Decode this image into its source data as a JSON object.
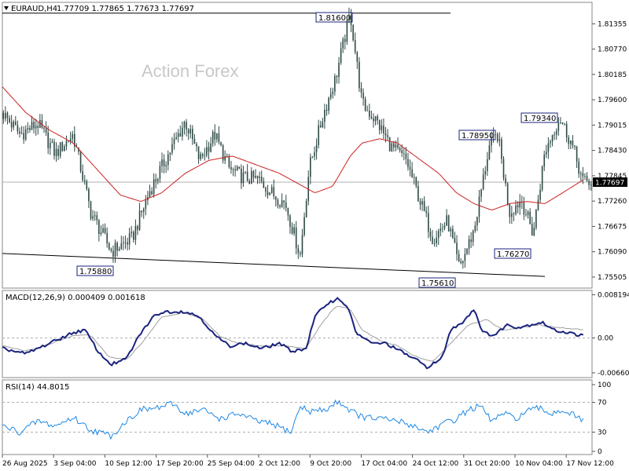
{
  "header": {
    "symbol": "EURAUD,H4",
    "ohlc": "1.77709 1.77865 1.77673 1.77697"
  },
  "watermark": "Action Forex",
  "colors": {
    "candle": "#2e4a46",
    "ma": "#cc2222",
    "macd": "#1a237e",
    "signal": "#a0a0a0",
    "rsi": "#1e88e5",
    "grid": "#b0b0b0"
  },
  "chart_data": [
    {
      "type": "candlestick",
      "panel": "price",
      "ylim": [
        1.7525,
        1.8185
      ],
      "y_ticks": [
        "1.81355",
        "1.80770",
        "1.80185",
        "1.79600",
        "1.79015",
        "1.78430",
        "1.77845",
        "1.77260",
        "1.76675",
        "1.76090",
        "1.75505"
      ],
      "current_price": "1.77697",
      "x_ticks": [
        "26 Aug 2025",
        "3 Sep 04:00",
        "10 Sep 12:00",
        "17 Sep 20:00",
        "25 Sep 04:00",
        "2 Oct 12:00",
        "9 Oct 20:00",
        "17 Oct 04:00",
        "24 Oct 12:00",
        "31 Oct 20:00",
        "10 Nov 04:00",
        "17 Nov 12:00"
      ],
      "annotations": [
        {
          "label": "1.81600",
          "value": 1.816
        },
        {
          "label": "1.75880",
          "value": 1.7588
        },
        {
          "label": "1.75610",
          "value": 1.7561
        },
        {
          "label": "1.78950",
          "value": 1.7895
        },
        {
          "label": "1.79340",
          "value": 1.7934
        },
        {
          "label": "1.76270",
          "value": 1.7627
        }
      ],
      "trendlines": [
        {
          "name": "resistance",
          "from": [
            0.0,
            1.816
          ],
          "to": [
            0.76,
            1.816
          ]
        },
        {
          "name": "support",
          "from": [
            0.0,
            1.7605
          ],
          "to": [
            0.92,
            1.7552
          ]
        }
      ],
      "key_points": [
        [
          0.0,
          1.793
        ],
        [
          0.03,
          1.788
        ],
        [
          0.06,
          1.7905
        ],
        [
          0.09,
          1.7835
        ],
        [
          0.12,
          1.788
        ],
        [
          0.15,
          1.77
        ],
        [
          0.185,
          1.761
        ],
        [
          0.22,
          1.764
        ],
        [
          0.25,
          1.775
        ],
        [
          0.28,
          1.783
        ],
        [
          0.31,
          1.791
        ],
        [
          0.335,
          1.782
        ],
        [
          0.36,
          1.788
        ],
        [
          0.385,
          1.78
        ],
        [
          0.41,
          1.778
        ],
        [
          0.435,
          1.7775
        ],
        [
          0.46,
          1.774
        ],
        [
          0.48,
          1.772
        ],
        [
          0.505,
          1.76
        ],
        [
          0.52,
          1.78
        ],
        [
          0.545,
          1.793
        ],
        [
          0.565,
          1.801
        ],
        [
          0.59,
          1.816
        ],
        [
          0.61,
          1.795
        ],
        [
          0.635,
          1.791
        ],
        [
          0.66,
          1.785
        ],
        [
          0.685,
          1.782
        ],
        [
          0.71,
          1.772
        ],
        [
          0.73,
          1.764
        ],
        [
          0.755,
          1.768
        ],
        [
          0.775,
          1.757
        ],
        [
          0.8,
          1.766
        ],
        [
          0.825,
          1.785
        ],
        [
          0.84,
          1.788
        ],
        [
          0.86,
          1.77
        ],
        [
          0.88,
          1.773
        ],
        [
          0.9,
          1.765
        ],
        [
          0.92,
          1.784
        ],
        [
          0.945,
          1.792
        ],
        [
          0.965,
          1.786
        ],
        [
          0.985,
          1.777
        ]
      ],
      "ma_points": [
        [
          0.0,
          1.799
        ],
        [
          0.04,
          1.793
        ],
        [
          0.08,
          1.789
        ],
        [
          0.12,
          1.786
        ],
        [
          0.16,
          1.78
        ],
        [
          0.2,
          1.774
        ],
        [
          0.235,
          1.7725
        ],
        [
          0.27,
          1.7745
        ],
        [
          0.31,
          1.779
        ],
        [
          0.35,
          1.782
        ],
        [
          0.39,
          1.783
        ],
        [
          0.43,
          1.781
        ],
        [
          0.47,
          1.779
        ],
        [
          0.51,
          1.776
        ],
        [
          0.53,
          1.7745
        ],
        [
          0.56,
          1.776
        ],
        [
          0.59,
          1.783
        ],
        [
          0.61,
          1.786
        ],
        [
          0.64,
          1.787
        ],
        [
          0.67,
          1.786
        ],
        [
          0.7,
          1.783
        ],
        [
          0.74,
          1.779
        ],
        [
          0.77,
          1.7745
        ],
        [
          0.8,
          1.772
        ],
        [
          0.83,
          1.7705
        ],
        [
          0.86,
          1.772
        ],
        [
          0.89,
          1.7725
        ],
        [
          0.92,
          1.772
        ],
        [
          0.95,
          1.7745
        ],
        [
          0.985,
          1.7775
        ]
      ]
    },
    {
      "type": "line",
      "panel": "macd",
      "title": "MACD(12,26,9) 0.000409 0.001618",
      "ylim": [
        -0.0075,
        0.009
      ],
      "y_ticks": [
        "0.008194",
        "0.00",
        "-0.006604"
      ],
      "key_points": [
        [
          0.0,
          -0.002
        ],
        [
          0.04,
          -0.003
        ],
        [
          0.08,
          -0.001
        ],
        [
          0.12,
          0.001
        ],
        [
          0.14,
          0.0015
        ],
        [
          0.165,
          -0.003
        ],
        [
          0.185,
          -0.005
        ],
        [
          0.21,
          -0.004
        ],
        [
          0.235,
          0.001
        ],
        [
          0.26,
          0.0045
        ],
        [
          0.28,
          0.005
        ],
        [
          0.31,
          0.005
        ],
        [
          0.335,
          0.004
        ],
        [
          0.36,
          0.0005
        ],
        [
          0.385,
          -0.0015
        ],
        [
          0.41,
          -0.001
        ],
        [
          0.44,
          -0.002
        ],
        [
          0.47,
          -0.001
        ],
        [
          0.49,
          -0.0025
        ],
        [
          0.515,
          -0.002
        ],
        [
          0.53,
          0.004
        ],
        [
          0.55,
          0.0065
        ],
        [
          0.57,
          0.0075
        ],
        [
          0.585,
          0.006
        ],
        [
          0.6,
          0.001
        ],
        [
          0.625,
          -0.001
        ],
        [
          0.65,
          -0.001
        ],
        [
          0.675,
          -0.0025
        ],
        [
          0.7,
          -0.004
        ],
        [
          0.72,
          -0.0055
        ],
        [
          0.745,
          -0.004
        ],
        [
          0.76,
          0.0015
        ],
        [
          0.78,
          0.003
        ],
        [
          0.8,
          0.0055
        ],
        [
          0.815,
          0.001
        ],
        [
          0.835,
          0.0005
        ],
        [
          0.855,
          0.0025
        ],
        [
          0.875,
          0.002
        ],
        [
          0.895,
          0.0025
        ],
        [
          0.915,
          0.003
        ],
        [
          0.935,
          0.0015
        ],
        [
          0.96,
          0.001
        ],
        [
          0.985,
          0.0004
        ]
      ],
      "signal_points": [
        [
          0.0,
          -0.0015
        ],
        [
          0.04,
          -0.0025
        ],
        [
          0.08,
          -0.0012
        ],
        [
          0.12,
          0.0005
        ],
        [
          0.15,
          0.0005
        ],
        [
          0.18,
          -0.0035
        ],
        [
          0.21,
          -0.0042
        ],
        [
          0.24,
          -0.0005
        ],
        [
          0.27,
          0.004
        ],
        [
          0.31,
          0.0048
        ],
        [
          0.34,
          0.0035
        ],
        [
          0.37,
          0.0002
        ],
        [
          0.4,
          -0.001
        ],
        [
          0.44,
          -0.0015
        ],
        [
          0.48,
          -0.0015
        ],
        [
          0.515,
          -0.002
        ],
        [
          0.54,
          0.0025
        ],
        [
          0.565,
          0.006
        ],
        [
          0.59,
          0.0055
        ],
        [
          0.61,
          0.0015
        ],
        [
          0.64,
          -0.0005
        ],
        [
          0.67,
          -0.0015
        ],
        [
          0.7,
          -0.0035
        ],
        [
          0.73,
          -0.0045
        ],
        [
          0.76,
          -0.001
        ],
        [
          0.79,
          0.0025
        ],
        [
          0.82,
          0.0035
        ],
        [
          0.85,
          0.0015
        ],
        [
          0.88,
          0.002
        ],
        [
          0.91,
          0.0025
        ],
        [
          0.94,
          0.002
        ],
        [
          0.985,
          0.0016
        ]
      ]
    },
    {
      "type": "line",
      "panel": "rsi",
      "title": "RSI(14) 44.8015",
      "ylim": [
        0,
        100
      ],
      "y_ticks": [
        "100",
        "70",
        "30",
        "0"
      ],
      "levels": [
        70,
        30
      ],
      "key_points": [
        [
          0.0,
          38
        ],
        [
          0.03,
          30
        ],
        [
          0.06,
          45
        ],
        [
          0.09,
          38
        ],
        [
          0.12,
          50
        ],
        [
          0.15,
          33
        ],
        [
          0.185,
          25
        ],
        [
          0.21,
          45
        ],
        [
          0.235,
          60
        ],
        [
          0.26,
          62
        ],
        [
          0.29,
          68
        ],
        [
          0.31,
          55
        ],
        [
          0.34,
          60
        ],
        [
          0.37,
          48
        ],
        [
          0.4,
          55
        ],
        [
          0.43,
          45
        ],
        [
          0.46,
          40
        ],
        [
          0.49,
          30
        ],
        [
          0.505,
          65
        ],
        [
          0.52,
          58
        ],
        [
          0.55,
          60
        ],
        [
          0.57,
          72
        ],
        [
          0.585,
          62
        ],
        [
          0.61,
          50
        ],
        [
          0.64,
          48
        ],
        [
          0.67,
          45
        ],
        [
          0.7,
          38
        ],
        [
          0.72,
          30
        ],
        [
          0.745,
          40
        ],
        [
          0.77,
          48
        ],
        [
          0.79,
          60
        ],
        [
          0.81,
          65
        ],
        [
          0.83,
          45
        ],
        [
          0.85,
          55
        ],
        [
          0.87,
          48
        ],
        [
          0.89,
          58
        ],
        [
          0.91,
          62
        ],
        [
          0.93,
          55
        ],
        [
          0.95,
          60
        ],
        [
          0.97,
          52
        ],
        [
          0.985,
          45
        ]
      ]
    }
  ]
}
